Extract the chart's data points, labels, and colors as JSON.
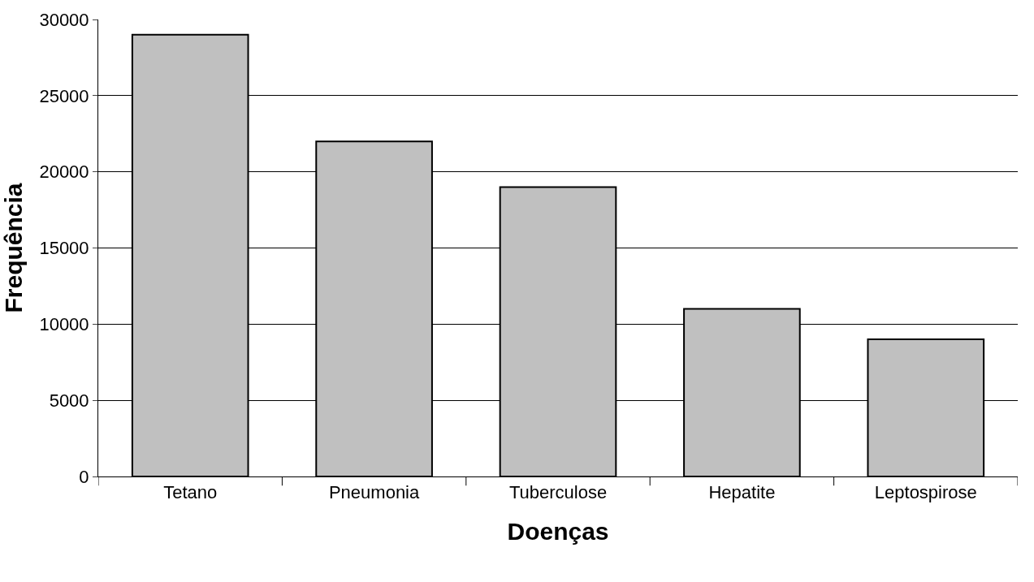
{
  "chart_data": {
    "type": "bar",
    "xlabel": "Doenças",
    "ylabel": "Frequência",
    "categories": [
      "Tetano",
      "Pneumonia",
      "Tuberculose",
      "Hepatite",
      "Leptospirose"
    ],
    "values": [
      29000,
      22000,
      19000,
      11000,
      9000
    ],
    "color": "#c0c0c0",
    "ylim": [
      0,
      30000
    ],
    "yticks": [
      0,
      5000,
      10000,
      15000,
      20000,
      25000,
      30000
    ],
    "grid": "y",
    "legend": false
  }
}
